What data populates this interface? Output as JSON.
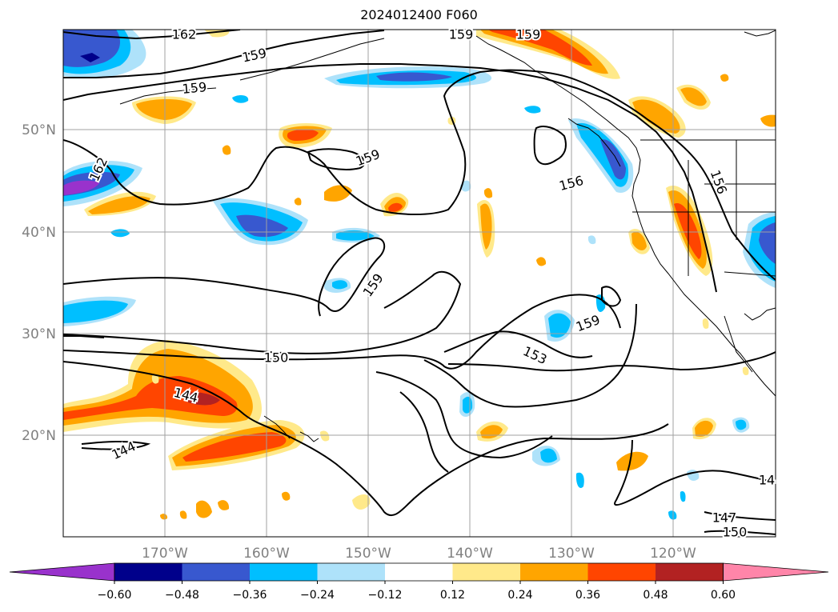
{
  "title": "2024012400 F060",
  "map": {
    "lat_labels": [
      "50°N",
      "40°N",
      "30°N",
      "20°N"
    ],
    "lon_labels": [
      "170°W",
      "160°W",
      "150°W",
      "140°W",
      "130°W",
      "120°W"
    ],
    "contour_labels": [
      "162",
      "159",
      "159",
      "162",
      "159",
      "156",
      "156",
      "159",
      "159",
      "153",
      "150",
      "144",
      "144",
      "14",
      "147",
      "150",
      "159",
      "159"
    ]
  },
  "colorbar": {
    "ticks": [
      "−0.60",
      "−0.48",
      "−0.36",
      "−0.24",
      "−0.12",
      "0.12",
      "0.24",
      "0.36",
      "0.48",
      "0.60"
    ],
    "colors": [
      "#9932cc",
      "#00008b",
      "#3858cf",
      "#00bfff",
      "#aee2fa",
      "#ffffff",
      "#ffe98a",
      "#ffa500",
      "#ff4500",
      "#b22222",
      "#ff85a9"
    ]
  },
  "colors": {
    "grid": "#a0a0a0",
    "contour": "#000000",
    "coast": "#000000"
  }
}
